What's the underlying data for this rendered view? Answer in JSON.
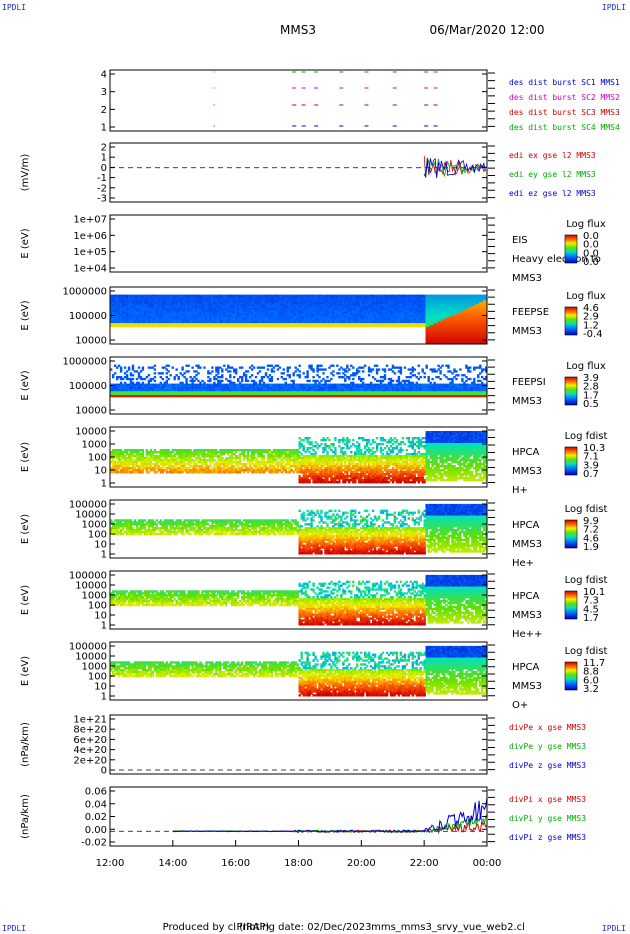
{
  "corners": {
    "tl": "IPDLI",
    "tr": "IPDLI",
    "bl": "IPDLI",
    "br": "IPDLI"
  },
  "header": {
    "spacecraft": "MMS3",
    "datetime": "06/Mar/2020 12:00"
  },
  "footer": {
    "produced": "Produced by cl (IRAP)",
    "printing_date": "Printing date: 02/Dec/2023",
    "filename": "mms_mms3_srvy_vue_web2.cl"
  },
  "chart_data": {
    "type": "multi-panel time series / spectrograms",
    "x_ticks": [
      "12:00",
      "14:00",
      "16:00",
      "18:00",
      "20:00",
      "22:00",
      "00:00"
    ],
    "x_range_hours": [
      12,
      24
    ],
    "panels": [
      {
        "id": "burst",
        "ylabel": "",
        "yticks": [
          "4",
          "3",
          "2",
          "1"
        ],
        "legend": [
          {
            "text": "des dist burst SC1 MMS1",
            "color": "#0000cc"
          },
          {
            "text": "des dist burst SC2 MMS2",
            "color": "#cc00cc"
          },
          {
            "text": "des dist burst SC3 MMS3",
            "color": "#cc0000"
          },
          {
            "text": "des dist burst SC4 MMS4",
            "color": "#00aa00"
          }
        ]
      },
      {
        "id": "edi",
        "ylabel": "(mV/m)",
        "yticks": [
          "2",
          "1",
          "0",
          "-1",
          "-2",
          "-3"
        ],
        "legend": [
          {
            "text": "edi ex gse l2 MMS3",
            "color": "#cc0000"
          },
          {
            "text": "edi ey gse l2 MMS3",
            "color": "#00aa00"
          },
          {
            "text": "edi ez gse l2 MMS3",
            "color": "#0000cc"
          }
        ]
      },
      {
        "id": "eis",
        "ylabel": "E (eV)",
        "yticks": [
          "1e+07",
          "1e+06",
          "1e+05",
          "1e+04"
        ],
        "side": [
          "EIS",
          "Heavy electron to",
          "MMS3"
        ],
        "cbar_title": "Log flux",
        "cbar_ticks": [
          "0.0",
          "0.0",
          "0.0",
          "0.0"
        ]
      },
      {
        "id": "feepse",
        "ylabel": "E (eV)",
        "yticks": [
          "1000000",
          "100000",
          "10000"
        ],
        "side": [
          "FEEPSE",
          "MMS3"
        ],
        "cbar_title": "Log flux",
        "cbar_ticks": [
          "4.6",
          "2.9",
          "1.2",
          "-0.4"
        ]
      },
      {
        "id": "feepsi",
        "ylabel": "E (eV)",
        "yticks": [
          "1000000",
          "100000",
          "10000"
        ],
        "side": [
          "FEEPSI",
          "MMS3"
        ],
        "cbar_title": "Log flux",
        "cbar_ticks": [
          "3.9",
          "2.8",
          "1.7",
          "0.5"
        ]
      },
      {
        "id": "hpca_h",
        "ylabel": "E (eV)",
        "yticks": [
          "10000",
          "1000",
          "100",
          "10",
          "1"
        ],
        "side": [
          "HPCA",
          "MMS3",
          "H+"
        ],
        "cbar_title": "Log fdist",
        "cbar_ticks": [
          "10.3",
          "7.1",
          "3.9",
          "0.7"
        ]
      },
      {
        "id": "hpca_he",
        "ylabel": "E (eV)",
        "yticks": [
          "100000",
          "10000",
          "1000",
          "100",
          "10",
          "1"
        ],
        "side": [
          "HPCA",
          "MMS3",
          "He+"
        ],
        "cbar_title": "Log fdist",
        "cbar_ticks": [
          "9.9",
          "7.2",
          "4.6",
          "1.9"
        ]
      },
      {
        "id": "hpca_hepp",
        "ylabel": "E (eV)",
        "yticks": [
          "100000",
          "10000",
          "1000",
          "100",
          "10",
          "1"
        ],
        "side": [
          "HPCA",
          "MMS3",
          "He++"
        ],
        "cbar_title": "Log fdist",
        "cbar_ticks": [
          "10.1",
          "7.3",
          "4.5",
          "1.7"
        ]
      },
      {
        "id": "hpca_o",
        "ylabel": "E (eV)",
        "yticks": [
          "100000",
          "10000",
          "1000",
          "100",
          "10",
          "1"
        ],
        "side": [
          "HPCA",
          "MMS3",
          "O+"
        ],
        "cbar_title": "Log fdist",
        "cbar_ticks": [
          "11.7",
          "8.8",
          "6.0",
          "3.2"
        ]
      },
      {
        "id": "divpe",
        "ylabel": "(nPa/km)",
        "yticks": [
          "1e+21",
          "8e+20",
          "6e+20",
          "4e+20",
          "2e+20",
          "0"
        ],
        "legend": [
          {
            "text": "divPe x gse MMS3",
            "color": "#cc0000"
          },
          {
            "text": "divPe y gse MMS3",
            "color": "#00aa00"
          },
          {
            "text": "divPe z gse MMS3",
            "color": "#0000cc"
          }
        ]
      },
      {
        "id": "divpi",
        "ylabel": "(nPa/km)",
        "yticks": [
          "0.06",
          "0.04",
          "0.02",
          "0.00",
          "-0.02"
        ],
        "legend": [
          {
            "text": "divPi x gse MMS3",
            "color": "#cc0000"
          },
          {
            "text": "divPi y gse MMS3",
            "color": "#00aa00"
          },
          {
            "text": "divPi z gse MMS3",
            "color": "#0000cc"
          }
        ]
      }
    ]
  }
}
